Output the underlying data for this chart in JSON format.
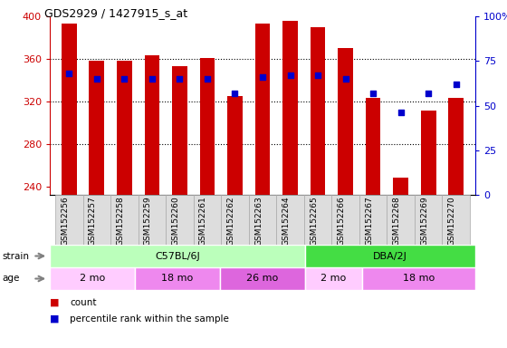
{
  "title": "GDS2929 / 1427915_s_at",
  "samples": [
    "GSM152256",
    "GSM152257",
    "GSM152258",
    "GSM152259",
    "GSM152260",
    "GSM152261",
    "GSM152262",
    "GSM152263",
    "GSM152264",
    "GSM152265",
    "GSM152266",
    "GSM152267",
    "GSM152268",
    "GSM152269",
    "GSM152270"
  ],
  "counts": [
    393,
    358,
    358,
    363,
    353,
    361,
    325,
    393,
    396,
    390,
    370,
    323,
    248,
    311,
    323
  ],
  "percentile": [
    68,
    65,
    65,
    65,
    65,
    65,
    57,
    66,
    67,
    67,
    65,
    57,
    46,
    57,
    62
  ],
  "ylim_left": [
    232,
    400
  ],
  "ylim_right": [
    0,
    100
  ],
  "yticks_left": [
    240,
    280,
    320,
    360,
    400
  ],
  "yticks_right": [
    0,
    25,
    50,
    75,
    100
  ],
  "bar_color": "#cc0000",
  "dot_color": "#0000cc",
  "bar_bottom": 232,
  "strain_groups": [
    {
      "label": "C57BL/6J",
      "start": 0,
      "end": 9,
      "color": "#bbffbb"
    },
    {
      "label": "DBA/2J",
      "start": 9,
      "end": 15,
      "color": "#44dd44"
    }
  ],
  "age_groups": [
    {
      "label": "2 mo",
      "start": 0,
      "end": 3,
      "color": "#ffccff"
    },
    {
      "label": "18 mo",
      "start": 3,
      "end": 6,
      "color": "#ee88ee"
    },
    {
      "label": "26 mo",
      "start": 6,
      "end": 9,
      "color": "#dd66dd"
    },
    {
      "label": "2 mo",
      "start": 9,
      "end": 11,
      "color": "#ffccff"
    },
    {
      "label": "18 mo",
      "start": 11,
      "end": 15,
      "color": "#ee88ee"
    }
  ],
  "tick_label_color_left": "#cc0000",
  "tick_label_color_right": "#0000cc",
  "sample_bg": "#dddddd",
  "sample_border": "#aaaaaa"
}
